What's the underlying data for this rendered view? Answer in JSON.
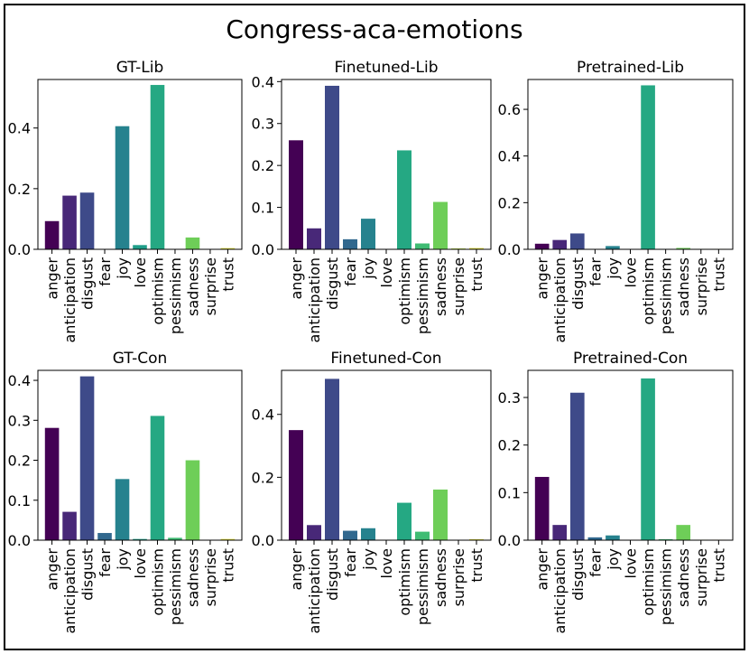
{
  "figure_title": "Congress-aca-emotions",
  "categories": [
    "anger",
    "anticipation",
    "disgust",
    "fear",
    "joy",
    "love",
    "optimism",
    "pessimism",
    "sadness",
    "surprise",
    "trust"
  ],
  "colors": [
    "#440154",
    "#482878",
    "#3e4a89",
    "#31688e",
    "#26828e",
    "#1f9e89",
    "#25a883",
    "#3fbc73",
    "#6ece58",
    "#b5de2b",
    "#e1dd37"
  ],
  "chart_data": [
    {
      "type": "bar",
      "title": "GT-Lib",
      "categories": [
        "anger",
        "anticipation",
        "disgust",
        "fear",
        "joy",
        "love",
        "optimism",
        "pessimism",
        "sadness",
        "surprise",
        "trust"
      ],
      "values": [
        0.093,
        0.177,
        0.187,
        0.0,
        0.406,
        0.014,
        0.542,
        0.0,
        0.039,
        0.0,
        0.004
      ],
      "ylim": [
        0,
        0.56
      ],
      "yticks": [
        0.0,
        0.2,
        0.4
      ],
      "ytick_labels": [
        "0.0",
        "0.2",
        "0.4"
      ],
      "xlabel": "",
      "ylabel": ""
    },
    {
      "type": "bar",
      "title": "Finetuned-Lib",
      "categories": [
        "anger",
        "anticipation",
        "disgust",
        "fear",
        "joy",
        "love",
        "optimism",
        "pessimism",
        "sadness",
        "surprise",
        "trust"
      ],
      "values": [
        0.26,
        0.05,
        0.39,
        0.024,
        0.073,
        0.0,
        0.236,
        0.014,
        0.113,
        0.002,
        0.003
      ],
      "ylim": [
        0,
        0.405
      ],
      "yticks": [
        0.0,
        0.1,
        0.2,
        0.3,
        0.4
      ],
      "ytick_labels": [
        "0.0",
        "0.1",
        "0.2",
        "0.3",
        "0.4"
      ],
      "xlabel": "",
      "ylabel": ""
    },
    {
      "type": "bar",
      "title": "Pretrained-Lib",
      "categories": [
        "anger",
        "anticipation",
        "disgust",
        "fear",
        "joy",
        "love",
        "optimism",
        "pessimism",
        "sadness",
        "surprise",
        "trust"
      ],
      "values": [
        0.024,
        0.04,
        0.068,
        0.0,
        0.014,
        0.0,
        0.703,
        0.002,
        0.006,
        0.002,
        0.002
      ],
      "ylim": [
        0,
        0.728
      ],
      "yticks": [
        0.0,
        0.2,
        0.4,
        0.6
      ],
      "ytick_labels": [
        "0.0",
        "0.2",
        "0.4",
        "0.6"
      ],
      "xlabel": "",
      "ylabel": ""
    },
    {
      "type": "bar",
      "title": "GT-Con",
      "categories": [
        "anger",
        "anticipation",
        "disgust",
        "fear",
        "joy",
        "love",
        "optimism",
        "pessimism",
        "sadness",
        "surprise",
        "trust"
      ],
      "values": [
        0.281,
        0.071,
        0.41,
        0.018,
        0.153,
        0.003,
        0.311,
        0.006,
        0.2,
        0.0,
        0.003
      ],
      "ylim": [
        0,
        0.425
      ],
      "yticks": [
        0.0,
        0.1,
        0.2,
        0.3,
        0.4
      ],
      "ytick_labels": [
        "0.0",
        "0.1",
        "0.2",
        "0.3",
        "0.4"
      ],
      "xlabel": "",
      "ylabel": ""
    },
    {
      "type": "bar",
      "title": "Finetuned-Con",
      "categories": [
        "anger",
        "anticipation",
        "disgust",
        "fear",
        "joy",
        "love",
        "optimism",
        "pessimism",
        "sadness",
        "surprise",
        "trust"
      ],
      "values": [
        0.35,
        0.048,
        0.513,
        0.03,
        0.038,
        0.0,
        0.119,
        0.027,
        0.161,
        0.001,
        0.003
      ],
      "ylim": [
        0,
        0.54
      ],
      "yticks": [
        0.0,
        0.2,
        0.4
      ],
      "ytick_labels": [
        "0.0",
        "0.2",
        "0.4"
      ],
      "xlabel": "",
      "ylabel": ""
    },
    {
      "type": "bar",
      "title": "Pretrained-Con",
      "categories": [
        "anger",
        "anticipation",
        "disgust",
        "fear",
        "joy",
        "love",
        "optimism",
        "pessimism",
        "sadness",
        "surprise",
        "trust"
      ],
      "values": [
        0.133,
        0.032,
        0.31,
        0.006,
        0.01,
        0.0,
        0.34,
        0.002,
        0.032,
        0.001,
        0.001
      ],
      "ylim": [
        0,
        0.357
      ],
      "yticks": [
        0.0,
        0.1,
        0.2,
        0.3
      ],
      "ytick_labels": [
        "0.0",
        "0.1",
        "0.2",
        "0.3"
      ],
      "xlabel": "",
      "ylabel": ""
    }
  ]
}
